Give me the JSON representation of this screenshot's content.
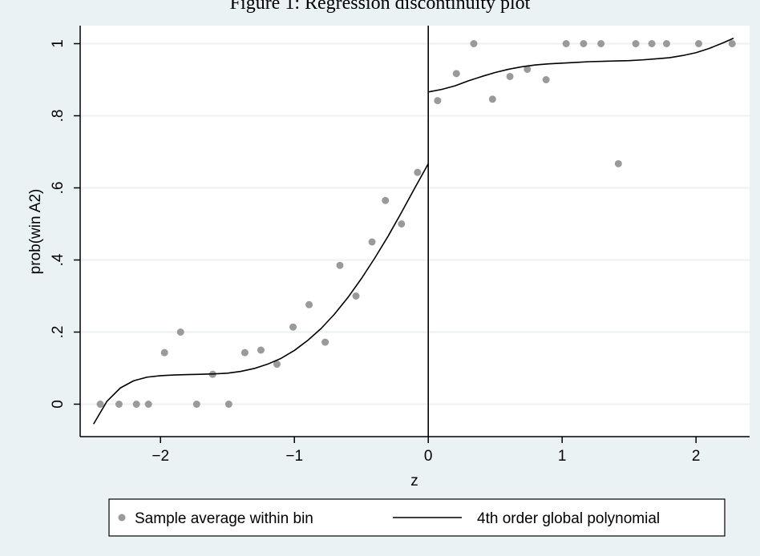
{
  "figure": {
    "caption": "Figure 1: Regression discontinuity plot"
  },
  "colors": {
    "background": "#eaf2f3",
    "plot_area": "#ffffff",
    "gridline": "#eaf2f3",
    "points": "#9a9a9a",
    "line": "#000000"
  },
  "chart_data": {
    "type": "scatter",
    "xlabel": "z",
    "ylabel": "prob(win A2)",
    "xlim": [
      -2.6,
      2.4
    ],
    "ylim": [
      -0.09,
      1.05
    ],
    "xticks": [
      -2,
      -1,
      0,
      1,
      2
    ],
    "xtick_labels": [
      "−2",
      "−1",
      "0",
      "1",
      "2"
    ],
    "yticks": [
      0,
      0.2,
      0.4,
      0.6,
      0.8,
      1
    ],
    "ytick_labels": [
      "0",
      ".2",
      ".4",
      ".6",
      ".8",
      "1"
    ],
    "grid": true,
    "cutoff": 0,
    "legend_position": "bottom",
    "series": [
      {
        "name": "Sample average within bin",
        "type": "scatter",
        "points": [
          [
            -2.45,
            0.0
          ],
          [
            -2.31,
            0.0
          ],
          [
            -2.18,
            0.0
          ],
          [
            -2.09,
            0.0
          ],
          [
            -1.97,
            0.143
          ],
          [
            -1.85,
            0.2
          ],
          [
            -1.73,
            0.0
          ],
          [
            -1.61,
            0.083
          ],
          [
            -1.49,
            0.0
          ],
          [
            -1.37,
            0.143
          ],
          [
            -1.25,
            0.15
          ],
          [
            -1.13,
            0.111
          ],
          [
            -1.01,
            0.214
          ],
          [
            -0.89,
            0.276
          ],
          [
            -0.77,
            0.172
          ],
          [
            -0.66,
            0.385
          ],
          [
            -0.54,
            0.3
          ],
          [
            -0.42,
            0.45
          ],
          [
            -0.32,
            0.565
          ],
          [
            -0.2,
            0.5
          ],
          [
            -0.08,
            0.643
          ],
          [
            0.07,
            0.842
          ],
          [
            0.21,
            0.917
          ],
          [
            0.34,
            1.0
          ],
          [
            0.48,
            0.846
          ],
          [
            0.61,
            0.909
          ],
          [
            0.74,
            0.929
          ],
          [
            0.88,
            0.9
          ],
          [
            1.03,
            1.0
          ],
          [
            1.16,
            1.0
          ],
          [
            1.29,
            1.0
          ],
          [
            1.42,
            0.667
          ],
          [
            1.55,
            1.0
          ],
          [
            1.67,
            1.0
          ],
          [
            1.78,
            1.0
          ],
          [
            2.02,
            1.0
          ],
          [
            2.27,
            1.0
          ]
        ]
      },
      {
        "name": "4th order global polynomial",
        "type": "line",
        "segments": [
          [
            [
              -2.5,
              -0.055
            ],
            [
              -2.4,
              0.008
            ],
            [
              -2.3,
              0.045
            ],
            [
              -2.2,
              0.065
            ],
            [
              -2.1,
              0.075
            ],
            [
              -2.0,
              0.079
            ],
            [
              -1.9,
              0.081
            ],
            [
              -1.8,
              0.082
            ],
            [
              -1.7,
              0.083
            ],
            [
              -1.6,
              0.084
            ],
            [
              -1.5,
              0.086
            ],
            [
              -1.4,
              0.091
            ],
            [
              -1.3,
              0.099
            ],
            [
              -1.2,
              0.111
            ],
            [
              -1.1,
              0.127
            ],
            [
              -1.0,
              0.149
            ],
            [
              -0.9,
              0.177
            ],
            [
              -0.8,
              0.21
            ],
            [
              -0.7,
              0.25
            ],
            [
              -0.6,
              0.296
            ],
            [
              -0.5,
              0.348
            ],
            [
              -0.4,
              0.405
            ],
            [
              -0.3,
              0.466
            ],
            [
              -0.2,
              0.532
            ],
            [
              -0.1,
              0.6
            ],
            [
              0.0,
              0.667
            ]
          ],
          [
            [
              0.0,
              0.866
            ],
            [
              0.1,
              0.873
            ],
            [
              0.2,
              0.883
            ],
            [
              0.3,
              0.897
            ],
            [
              0.4,
              0.909
            ],
            [
              0.5,
              0.92
            ],
            [
              0.6,
              0.929
            ],
            [
              0.7,
              0.936
            ],
            [
              0.8,
              0.941
            ],
            [
              0.9,
              0.944
            ],
            [
              1.0,
              0.946
            ],
            [
              1.1,
              0.948
            ],
            [
              1.2,
              0.95
            ],
            [
              1.3,
              0.951
            ],
            [
              1.4,
              0.952
            ],
            [
              1.5,
              0.953
            ],
            [
              1.6,
              0.955
            ],
            [
              1.7,
              0.958
            ],
            [
              1.8,
              0.961
            ],
            [
              1.9,
              0.967
            ],
            [
              2.0,
              0.975
            ],
            [
              2.1,
              0.987
            ],
            [
              2.2,
              1.002
            ],
            [
              2.28,
              1.015
            ]
          ]
        ]
      }
    ]
  }
}
